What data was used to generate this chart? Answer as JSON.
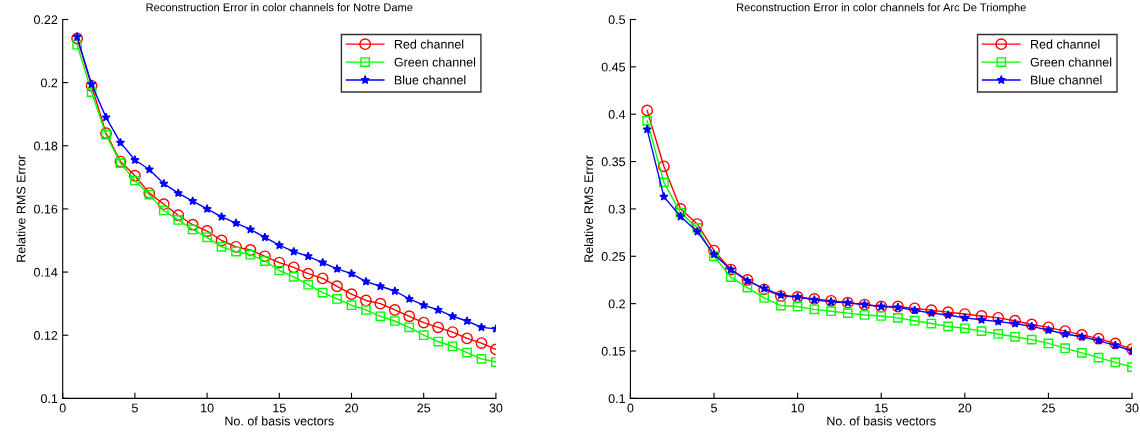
{
  "chart_data": [
    {
      "type": "line",
      "title": "Reconstruction Error in color channels for Notre Dame",
      "xlabel": "No. of basis vectors",
      "ylabel": "Relative RMS Error",
      "x": [
        1,
        2,
        3,
        4,
        5,
        6,
        7,
        8,
        9,
        10,
        11,
        12,
        13,
        14,
        15,
        16,
        17,
        18,
        19,
        20,
        21,
        22,
        23,
        24,
        25,
        26,
        27,
        28,
        29,
        30
      ],
      "xlim": [
        0,
        30
      ],
      "xticks": [
        0,
        5,
        10,
        15,
        20,
        25,
        30
      ],
      "ylim": [
        0.1,
        0.22
      ],
      "yticks": [
        0.1,
        0.12,
        0.14,
        0.16,
        0.18,
        0.2,
        0.22
      ],
      "grid": false,
      "legend": "top right",
      "series": [
        {
          "name": "Red channel",
          "color": "#ff0000",
          "marker": "circle",
          "values": [
            0.214,
            0.199,
            0.184,
            0.175,
            0.1705,
            0.165,
            0.1615,
            0.158,
            0.155,
            0.153,
            0.15,
            0.148,
            0.147,
            0.145,
            0.143,
            0.1415,
            0.1395,
            0.138,
            0.1355,
            0.133,
            0.131,
            0.13,
            0.128,
            0.126,
            0.124,
            0.1225,
            0.121,
            0.119,
            0.1175,
            0.1155
          ]
        },
        {
          "name": "Green channel",
          "color": "#00ff00",
          "marker": "square",
          "values": [
            0.212,
            0.197,
            0.1835,
            0.1745,
            0.169,
            0.1645,
            0.1595,
            0.1565,
            0.1535,
            0.151,
            0.148,
            0.1465,
            0.1455,
            0.1435,
            0.1405,
            0.1385,
            0.136,
            0.1335,
            0.1315,
            0.1295,
            0.128,
            0.126,
            0.1245,
            0.1225,
            0.12,
            0.118,
            0.1165,
            0.1145,
            0.1125,
            0.1115
          ]
        },
        {
          "name": "Blue channel",
          "color": "#0000ff",
          "marker": "star",
          "values": [
            0.2145,
            0.1995,
            0.189,
            0.181,
            0.1755,
            0.1725,
            0.168,
            0.165,
            0.1625,
            0.16,
            0.1575,
            0.1555,
            0.1535,
            0.151,
            0.1485,
            0.1465,
            0.145,
            0.143,
            0.141,
            0.1395,
            0.137,
            0.1355,
            0.134,
            0.1315,
            0.1295,
            0.128,
            0.126,
            0.1245,
            0.1225,
            0.122
          ]
        }
      ]
    },
    {
      "type": "line",
      "title": "Reconstruction Error in color channels for Arc De Triomphe",
      "xlabel": "No. of basis vectors",
      "ylabel": "Relative RMS Error",
      "x": [
        1,
        2,
        3,
        4,
        5,
        6,
        7,
        8,
        9,
        10,
        11,
        12,
        13,
        14,
        15,
        16,
        17,
        18,
        19,
        20,
        21,
        22,
        23,
        24,
        25,
        26,
        27,
        28,
        29,
        30
      ],
      "xlim": [
        0,
        30
      ],
      "xticks": [
        0,
        5,
        10,
        15,
        20,
        25,
        30
      ],
      "ylim": [
        0.1,
        0.5
      ],
      "yticks": [
        0.1,
        0.15,
        0.2,
        0.25,
        0.3,
        0.35,
        0.4,
        0.45,
        0.5
      ],
      "grid": false,
      "legend": "top right",
      "series": [
        {
          "name": "Red channel",
          "color": "#ff0000",
          "marker": "circle",
          "values": [
            0.404,
            0.345,
            0.3,
            0.284,
            0.256,
            0.236,
            0.225,
            0.215,
            0.208,
            0.207,
            0.205,
            0.203,
            0.201,
            0.199,
            0.197,
            0.197,
            0.195,
            0.193,
            0.191,
            0.189,
            0.187,
            0.185,
            0.182,
            0.178,
            0.175,
            0.171,
            0.167,
            0.163,
            0.158,
            0.152
          ]
        },
        {
          "name": "Green channel",
          "color": "#00ff00",
          "marker": "square",
          "values": [
            0.393,
            0.328,
            0.296,
            0.28,
            0.25,
            0.228,
            0.217,
            0.206,
            0.198,
            0.197,
            0.194,
            0.192,
            0.19,
            0.188,
            0.187,
            0.185,
            0.182,
            0.179,
            0.176,
            0.174,
            0.171,
            0.168,
            0.165,
            0.162,
            0.158,
            0.153,
            0.148,
            0.143,
            0.138,
            0.133
          ]
        },
        {
          "name": "Blue channel",
          "color": "#0000ff",
          "marker": "star",
          "values": [
            0.384,
            0.313,
            0.292,
            0.276,
            0.252,
            0.236,
            0.224,
            0.216,
            0.209,
            0.207,
            0.204,
            0.202,
            0.201,
            0.199,
            0.197,
            0.196,
            0.193,
            0.19,
            0.188,
            0.185,
            0.183,
            0.181,
            0.179,
            0.176,
            0.172,
            0.168,
            0.165,
            0.161,
            0.156,
            0.15
          ]
        }
      ]
    }
  ]
}
